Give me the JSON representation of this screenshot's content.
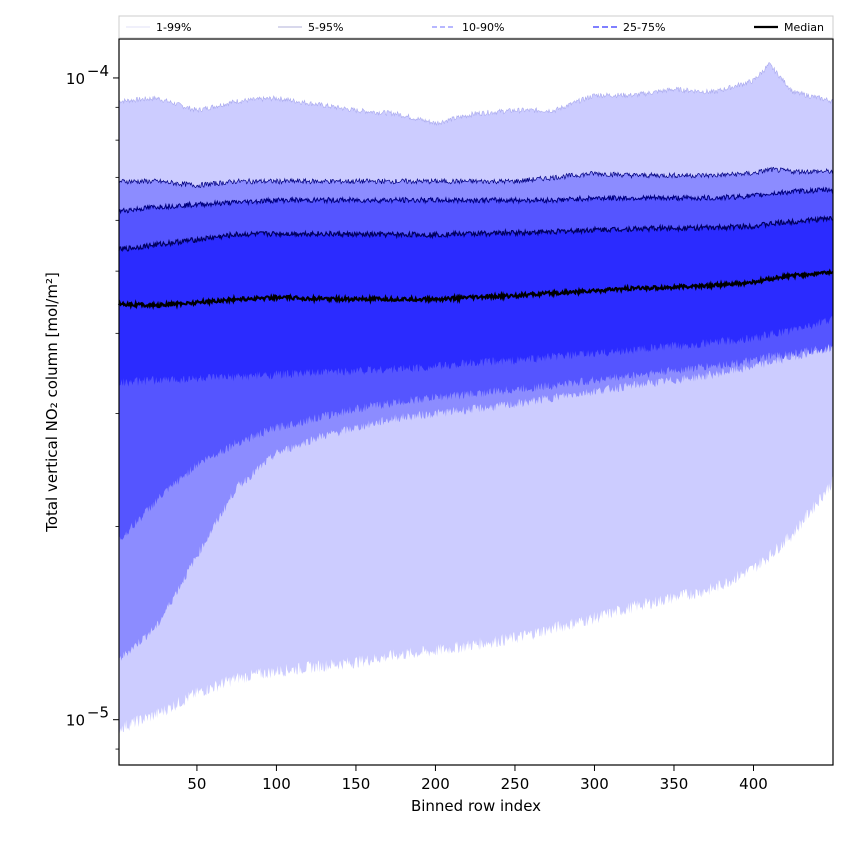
{
  "chart_data": {
    "type": "area",
    "title": "",
    "xlabel": "Binned row index",
    "ylabel": "Total vertical NO₂ column [mol/m²]",
    "x_scale": "linear",
    "y_scale": "log",
    "xlim": [
      1,
      450
    ],
    "ylim": [
      8.5e-06,
      0.000115
    ],
    "x_ticks": [
      50,
      100,
      150,
      200,
      250,
      300,
      350,
      400
    ],
    "x_tick_labels": [
      "50",
      "100",
      "150",
      "200",
      "250",
      "300",
      "350",
      "400"
    ],
    "y_ticks": [
      1e-05,
      0.0001
    ],
    "y_tick_labels": [
      {
        "base": "10",
        "exp": "−5"
      },
      {
        "base": "10",
        "exp": "−4"
      }
    ],
    "grid": false,
    "legend_position": "top",
    "colors": {
      "band_1_99": "#ccccff",
      "band_5_95": "#8c8cff",
      "band_10_90": "#5555ff",
      "band_25_75": "#2b2bff",
      "median": "#000000"
    },
    "x": [
      1,
      25,
      50,
      75,
      100,
      125,
      150,
      175,
      200,
      225,
      250,
      275,
      300,
      325,
      350,
      375,
      400,
      410,
      425,
      450
    ],
    "series": [
      {
        "name": "1-99%",
        "lower": [
          9.7e-06,
          1.02e-05,
          1.1e-05,
          1.16e-05,
          1.19e-05,
          1.21e-05,
          1.23e-05,
          1.26e-05,
          1.28e-05,
          1.31e-05,
          1.34e-05,
          1.39e-05,
          1.44e-05,
          1.5e-05,
          1.55e-05,
          1.6e-05,
          1.72e-05,
          1.8e-05,
          1.95e-05,
          2.35e-05
        ],
        "upper": [
          9.2e-05,
          9.3e-05,
          8.9e-05,
          9.2e-05,
          9.3e-05,
          9.1e-05,
          8.9e-05,
          8.8e-05,
          8.5e-05,
          8.8e-05,
          8.9e-05,
          8.9e-05,
          9.4e-05,
          9.4e-05,
          9.6e-05,
          9.5e-05,
          9.9e-05,
          0.000105,
          9.5e-05,
          9.2e-05
        ]
      },
      {
        "name": "5-95%",
        "lower": [
          1.24e-05,
          1.4e-05,
          1.8e-05,
          2.3e-05,
          2.6e-05,
          2.75e-05,
          2.85e-05,
          2.95e-05,
          3e-05,
          3.05e-05,
          3.1e-05,
          3.18e-05,
          3.25e-05,
          3.32e-05,
          3.38e-05,
          3.45e-05,
          3.55e-05,
          3.6e-05,
          3.68e-05,
          3.8e-05
        ],
        "upper": [
          6.9e-05,
          6.9e-05,
          6.8e-05,
          6.9e-05,
          6.9e-05,
          6.9e-05,
          6.9e-05,
          6.9e-05,
          6.9e-05,
          6.9e-05,
          6.9e-05,
          7e-05,
          7.1e-05,
          7.05e-05,
          7.05e-05,
          7.05e-05,
          7.1e-05,
          7.2e-05,
          7.15e-05,
          7.15e-05
        ]
      },
      {
        "name": "10-90%",
        "lower": [
          1.9e-05,
          2.2e-05,
          2.5e-05,
          2.7e-05,
          2.85e-05,
          2.95e-05,
          3.05e-05,
          3.12e-05,
          3.18e-05,
          3.22e-05,
          3.27e-05,
          3.32e-05,
          3.38e-05,
          3.44e-05,
          3.5e-05,
          3.56e-05,
          3.62e-05,
          3.68e-05,
          3.72e-05,
          3.8e-05
        ],
        "upper": [
          6.2e-05,
          6.3e-05,
          6.35e-05,
          6.4e-05,
          6.45e-05,
          6.45e-05,
          6.45e-05,
          6.45e-05,
          6.45e-05,
          6.45e-05,
          6.45e-05,
          6.45e-05,
          6.5e-05,
          6.5e-05,
          6.5e-05,
          6.5e-05,
          6.55e-05,
          6.6e-05,
          6.65e-05,
          6.7e-05
        ]
      },
      {
        "name": "25-75%",
        "lower": [
          3.35e-05,
          3.38e-05,
          3.4e-05,
          3.42e-05,
          3.45e-05,
          3.47e-05,
          3.5e-05,
          3.52e-05,
          3.55e-05,
          3.6e-05,
          3.63e-05,
          3.68e-05,
          3.72e-05,
          3.77e-05,
          3.82e-05,
          3.87e-05,
          3.93e-05,
          3.98e-05,
          4.05e-05,
          4.2e-05
        ],
        "upper": [
          5.4e-05,
          5.5e-05,
          5.6e-05,
          5.7e-05,
          5.72e-05,
          5.72e-05,
          5.7e-05,
          5.7e-05,
          5.7e-05,
          5.72e-05,
          5.74e-05,
          5.76e-05,
          5.8e-05,
          5.82e-05,
          5.84e-05,
          5.84e-05,
          5.88e-05,
          5.92e-05,
          5.97e-05,
          6.05e-05
        ]
      },
      {
        "name": "Median",
        "values": [
          4.45e-05,
          4.42e-05,
          4.47e-05,
          4.52e-05,
          4.55e-05,
          4.53e-05,
          4.52e-05,
          4.52e-05,
          4.52e-05,
          4.55e-05,
          4.58e-05,
          4.62e-05,
          4.66e-05,
          4.7e-05,
          4.72e-05,
          4.75e-05,
          4.8e-05,
          4.86e-05,
          4.92e-05,
          4.98e-05
        ]
      }
    ]
  }
}
